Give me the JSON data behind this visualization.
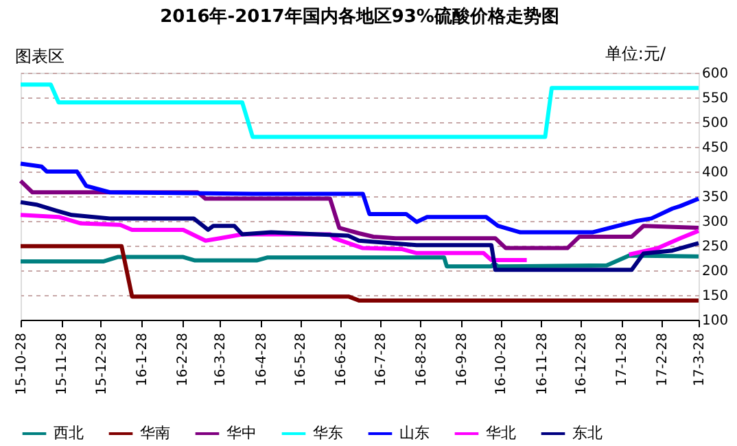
{
  "chart_data": {
    "type": "line",
    "title": "2016年-2017年国内各地区93%硫酸价格走势图",
    "annotations": [
      "单位:元/",
      "图表区"
    ],
    "ylim": [
      100,
      600
    ],
    "yticks": [
      100,
      150,
      200,
      250,
      300,
      350,
      400,
      450,
      500,
      550,
      600
    ],
    "xlim": [
      "2015-10-28",
      "2017-03-28"
    ],
    "xticks": [
      {
        "value": "2015-10-28",
        "label": "15-10-28"
      },
      {
        "value": "2015-11-28",
        "label": "15-11-28"
      },
      {
        "value": "2015-12-28",
        "label": "15-12-28"
      },
      {
        "value": "2016-01-28",
        "label": "16-1-28"
      },
      {
        "value": "2016-02-28",
        "label": "16-2-28"
      },
      {
        "value": "2016-03-28",
        "label": "16-3-28"
      },
      {
        "value": "2016-04-28",
        "label": "16-4-28"
      },
      {
        "value": "2016-05-28",
        "label": "16-5-28"
      },
      {
        "value": "2016-06-28",
        "label": "16-6-28"
      },
      {
        "value": "2016-07-28",
        "label": "16-7-28"
      },
      {
        "value": "2016-08-28",
        "label": "16-8-28"
      },
      {
        "value": "2016-09-28",
        "label": "16-9-28"
      },
      {
        "value": "2016-10-28",
        "label": "16-10-28"
      },
      {
        "value": "2016-11-28",
        "label": "16-11-28"
      },
      {
        "value": "2016-12-28",
        "label": "16-12-28"
      },
      {
        "value": "2017-01-28",
        "label": "17-1-28"
      },
      {
        "value": "2017-02-28",
        "label": "17-2-28"
      },
      {
        "value": "2017-03-28",
        "label": "17-3-28"
      }
    ],
    "grid": "y",
    "legend": "bottom",
    "marker": "none",
    "line_style": "solid",
    "series": [
      {
        "name": "西北",
        "color": "#008080",
        "x": [
          "2015-10-28",
          "2015-12-30",
          "2016-01-10",
          "2016-02-29",
          "2016-03-09",
          "2016-04-25",
          "2016-05-03",
          "2016-09-15",
          "2016-09-17",
          "2016-10-21",
          "2016-10-23",
          "2016-10-26",
          "2017-01-17",
          "2017-02-03",
          "2017-03-28"
        ],
        "values": [
          218,
          218,
          227,
          227,
          220,
          220,
          226,
          226,
          208,
          208,
          214,
          208,
          210,
          230,
          228
        ]
      },
      {
        "name": "华南",
        "color": "#800000",
        "x": [
          "2015-10-28",
          "2016-01-13",
          "2016-01-21",
          "2016-07-04",
          "2016-07-12",
          "2017-03-28"
        ],
        "values": [
          249,
          249,
          147,
          147,
          139,
          139
        ]
      },
      {
        "name": "华中",
        "color": "#800080",
        "x": [
          "2015-10-28",
          "2015-11-06",
          "2016-03-11",
          "2016-03-17",
          "2016-06-20",
          "2016-06-27",
          "2016-07-12",
          "2016-07-23",
          "2016-08-09",
          "2016-10-24",
          "2016-11-01",
          "2016-12-18",
          "2016-12-27",
          "2017-02-05",
          "2017-02-14",
          "2017-03-28"
        ],
        "values": [
          381,
          358,
          358,
          345,
          345,
          286,
          275,
          268,
          265,
          265,
          245,
          245,
          268,
          268,
          290,
          286
        ]
      },
      {
        "name": "华东",
        "color": "#00ffff",
        "x": [
          "2015-10-28",
          "2015-11-20",
          "2015-11-26",
          "2016-04-14",
          "2016-04-22",
          "2016-12-01",
          "2016-12-06",
          "2017-03-28"
        ],
        "values": [
          576,
          576,
          540,
          540,
          470,
          470,
          569,
          569
        ]
      },
      {
        "name": "山东",
        "color": "#0000ff",
        "x": [
          "2015-10-28",
          "2015-11-13",
          "2015-11-17",
          "2015-12-10",
          "2015-12-17",
          "2016-01-04",
          "2016-04-22",
          "2016-07-15",
          "2016-07-20",
          "2016-08-17",
          "2016-08-25",
          "2016-09-02",
          "2016-10-17",
          "2016-10-26",
          "2016-11-12",
          "2017-01-06",
          "2017-02-09",
          "2017-02-20",
          "2017-03-08",
          "2017-03-14",
          "2017-03-28"
        ],
        "values": [
          416,
          410,
          400,
          400,
          371,
          358,
          355,
          355,
          314,
          314,
          298,
          308,
          308,
          290,
          277,
          277,
          300,
          305,
          325,
          330,
          345
        ]
      },
      {
        "name": "华北",
        "color": "#ff00ff",
        "x": [
          "2015-10-28",
          "2015-11-26",
          "2015-12-13",
          "2016-01-12",
          "2016-01-21",
          "2016-02-29",
          "2016-03-17",
          "2016-03-28",
          "2016-04-14",
          "2016-06-20",
          "2016-06-23",
          "2016-07-15",
          "2016-08-14",
          "2016-08-25",
          "2016-10-15",
          "2016-10-21",
          "2016-11-17",
          "2016-11-20",
          "2017-02-03",
          "2017-02-25",
          "2017-03-14",
          "2017-03-28"
        ],
        "values": [
          312,
          308,
          295,
          292,
          282,
          282,
          260,
          265,
          273,
          273,
          265,
          245,
          243,
          235,
          235,
          221,
          221,
          null,
          232,
          245,
          265,
          280
        ]
      },
      {
        "name": "东北",
        "color": "#000080",
        "x": [
          "2015-10-28",
          "2015-11-09",
          "2015-11-24",
          "2015-12-06",
          "2016-01-04",
          "2016-03-08",
          "2016-03-19",
          "2016-03-23",
          "2016-04-08",
          "2016-04-14",
          "2016-05-06",
          "2016-07-04",
          "2016-07-12",
          "2016-08-25",
          "2016-10-21",
          "2016-10-24",
          "2017-02-05",
          "2017-02-14",
          "2017-03-08",
          "2017-03-28"
        ],
        "values": [
          338,
          333,
          321,
          312,
          305,
          305,
          282,
          290,
          290,
          273,
          277,
          270,
          260,
          251,
          251,
          201,
          201,
          234,
          240,
          255
        ]
      }
    ]
  }
}
